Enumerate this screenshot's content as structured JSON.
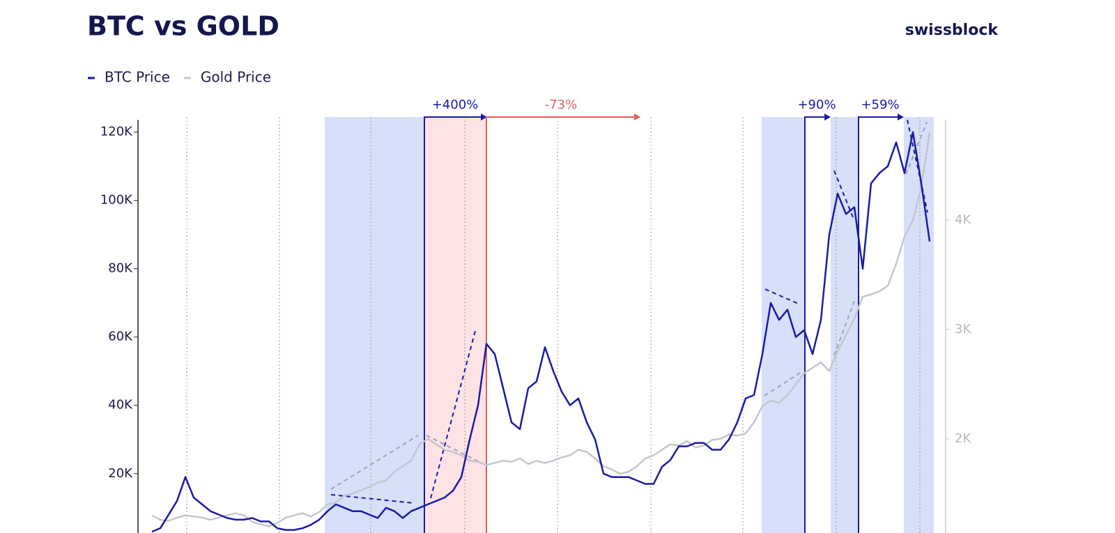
{
  "chart_data": {
    "type": "line",
    "title": "BTC vs GOLD",
    "brand": "swissblock",
    "annotations": [
      "+400%",
      "-73%",
      "+90%",
      "+59%"
    ],
    "categories": [
      null,
      null,
      null,
      null,
      null,
      null,
      null,
      null,
      null,
      null,
      null,
      null,
      null,
      null,
      null,
      null,
      null,
      null,
      null,
      null,
      null,
      null,
      null,
      null,
      null,
      null,
      null,
      null,
      null,
      null,
      null,
      null,
      null,
      null,
      null,
      null,
      null,
      null,
      null,
      null,
      null,
      null,
      null,
      null,
      null,
      null,
      null,
      null,
      null,
      null,
      null,
      null,
      null,
      null,
      null,
      null,
      null,
      null,
      null,
      null,
      null,
      null,
      null,
      null,
      null,
      null,
      null,
      null,
      null,
      null,
      null,
      null,
      null,
      null,
      null,
      null,
      null,
      null,
      null,
      null,
      null,
      null,
      null,
      null,
      null,
      null,
      null,
      null,
      null,
      null,
      null,
      null,
      null,
      null
    ],
    "series": [
      {
        "name": "BTC Price",
        "color": "#1a1aa6",
        "axis": "y",
        "values": [
          3000,
          4000,
          8000,
          12000,
          19000,
          13000,
          11000,
          9000,
          8000,
          7000,
          6500,
          6500,
          7000,
          6000,
          6000,
          4000,
          3500,
          3500,
          4000,
          5000,
          6500,
          9000,
          11000,
          10000,
          9000,
          9000,
          8000,
          7000,
          10000,
          9000,
          7000,
          9000,
          10000,
          11000,
          12000,
          13000,
          15000,
          19000,
          30000,
          40000,
          58000,
          55000,
          45000,
          35000,
          33000,
          45000,
          47000,
          57000,
          50000,
          44000,
          40000,
          42000,
          35000,
          30000,
          20000,
          19000,
          19000,
          19000,
          18000,
          17000,
          17000,
          22000,
          24000,
          28000,
          28000,
          29000,
          29000,
          27000,
          27000,
          30000,
          35000,
          42000,
          43000,
          55000,
          70000,
          65000,
          68000,
          60000,
          62000,
          55000,
          65000,
          90000,
          102000,
          96000,
          98000,
          80000,
          105000,
          108000,
          110000,
          117000,
          108000,
          120000,
          105000,
          88000
        ]
      },
      {
        "name": "Gold Price",
        "color": "#c3c6cf",
        "axis": "y2",
        "values": [
          1300,
          1260,
          1250,
          1280,
          1300,
          1290,
          1280,
          1260,
          1280,
          1300,
          1320,
          1300,
          1240,
          1220,
          1200,
          1230,
          1280,
          1300,
          1320,
          1290,
          1330,
          1400,
          1420,
          1480,
          1500,
          1530,
          1560,
          1600,
          1620,
          1700,
          1750,
          1800,
          1950,
          2000,
          1950,
          1900,
          1880,
          1850,
          1800,
          1790,
          1760,
          1780,
          1800,
          1790,
          1820,
          1770,
          1800,
          1780,
          1800,
          1830,
          1850,
          1900,
          1880,
          1820,
          1750,
          1720,
          1680,
          1700,
          1750,
          1820,
          1850,
          1900,
          1950,
          1940,
          1980,
          1920,
          1940,
          1990,
          2000,
          2040,
          2030,
          2050,
          2150,
          2300,
          2350,
          2330,
          2400,
          2500,
          2600,
          2650,
          2700,
          2620,
          2800,
          2950,
          3100,
          3300,
          3320,
          3350,
          3400,
          3600,
          3850,
          4000,
          4300,
          4800
        ]
      }
    ],
    "ylim": [
      2000,
      124000
    ],
    "yticks": [
      {
        "value": 20000,
        "label": "20K"
      },
      {
        "value": 40000,
        "label": "40K"
      },
      {
        "value": 60000,
        "label": "60K"
      },
      {
        "value": 80000,
        "label": "80K"
      },
      {
        "value": 100000,
        "label": "100K"
      },
      {
        "value": 120000,
        "label": "120K"
      }
    ],
    "y2lim": [
      1120,
      4930
    ],
    "y2ticks": [
      {
        "value": 2000,
        "label": "2K"
      },
      {
        "value": 3000,
        "label": "3K"
      },
      {
        "value": 4000,
        "label": "4K"
      }
    ],
    "legend": "top-left"
  }
}
